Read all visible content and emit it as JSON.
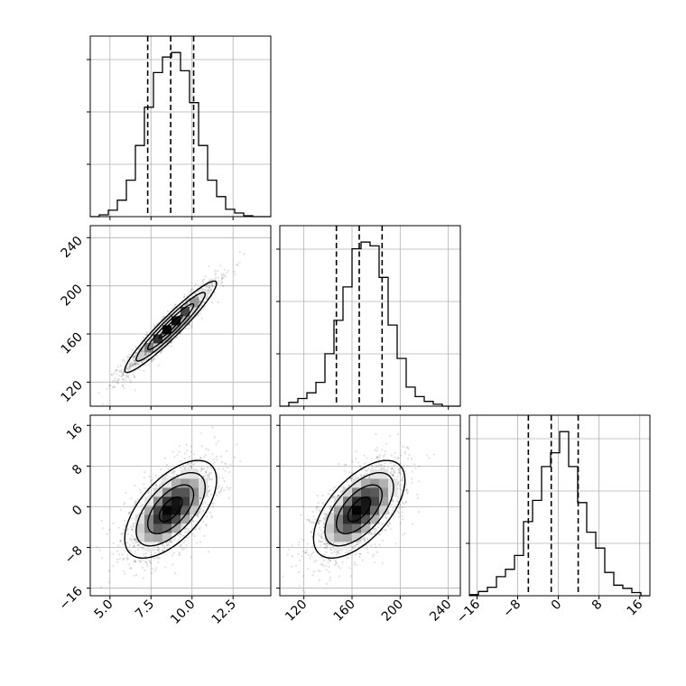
{
  "chart_data": {
    "type": "corner",
    "parameters": [
      {
        "name": "",
        "range": [
          3.8,
          14.8
        ],
        "ticks": [
          5.0,
          7.5,
          10.0,
          12.5
        ],
        "tick_labels": [
          "5.0",
          "7.5",
          "10.0",
          "12.5"
        ]
      },
      {
        "name": "",
        "range": [
          100,
          250
        ],
        "ticks": [
          120,
          160,
          200,
          240
        ],
        "tick_labels": [
          "120",
          "160",
          "200",
          "240"
        ]
      },
      {
        "name": "",
        "range": [
          -17.5,
          18
        ],
        "ticks": [
          -16,
          -8,
          0,
          8,
          16
        ],
        "tick_labels": [
          "−16",
          "−8",
          "0",
          "8",
          "16"
        ]
      }
    ],
    "histograms": [
      {
        "parameter": 0,
        "edges": [
          3.8,
          4.35,
          4.9,
          5.45,
          6.0,
          6.55,
          7.1,
          7.65,
          8.2,
          8.75,
          9.3,
          9.85,
          10.4,
          10.95,
          11.5,
          12.05,
          12.6,
          13.15,
          13.7,
          14.25,
          14.8
        ],
        "counts": [
          0,
          2,
          7,
          18,
          40,
          78,
          120,
          158,
          175,
          180,
          160,
          125,
          78,
          40,
          22,
          8,
          4,
          1,
          0,
          0
        ],
        "quantiles": [
          7.3,
          8.7,
          10.1
        ]
      },
      {
        "parameter": 1,
        "edges": [
          100,
          107.5,
          115,
          122.5,
          130,
          137.5,
          145,
          152.5,
          160,
          167.5,
          175,
          182.5,
          190,
          197.5,
          205,
          212.5,
          220,
          227.5,
          235,
          242.5,
          250
        ],
        "counts": [
          0,
          4,
          8,
          14,
          25,
          55,
          90,
          125,
          165,
          172,
          168,
          135,
          85,
          50,
          20,
          10,
          5,
          2,
          0,
          0
        ],
        "quantiles": [
          147,
          166,
          185
        ]
      },
      {
        "parameter": 2,
        "edges": [
          -17.5,
          -15.725,
          -13.95,
          -12.175,
          -10.4,
          -8.625,
          -6.85,
          -5.075,
          -3.3,
          -1.525,
          0.25,
          2.025,
          3.8,
          5.575,
          7.35,
          9.125,
          10.9,
          12.675,
          14.45,
          16.225,
          18.0
        ],
        "counts": [
          1,
          4,
          8,
          18,
          25,
          38,
          70,
          90,
          122,
          135,
          155,
          122,
          88,
          60,
          45,
          22,
          10,
          7,
          3,
          0
        ],
        "quantiles": [
          -5.9,
          -1.4,
          3.9
        ]
      }
    ],
    "pairs": [
      {
        "x_param": 0,
        "y_param": 1,
        "mean": [
          8.7,
          166
        ],
        "std": [
          1.4,
          19
        ],
        "rho": 0.95
      },
      {
        "x_param": 0,
        "y_param": 2,
        "mean": [
          8.7,
          -0.5
        ],
        "std": [
          1.4,
          4.8
        ],
        "rho": 0.6
      },
      {
        "x_param": 1,
        "y_param": 2,
        "mean": [
          166,
          -0.5
        ],
        "std": [
          19,
          4.8
        ],
        "rho": 0.6
      }
    ],
    "contour_levels_sigma": [
      0.5,
      1.0,
      1.5,
      2.0
    ],
    "grid": true
  }
}
